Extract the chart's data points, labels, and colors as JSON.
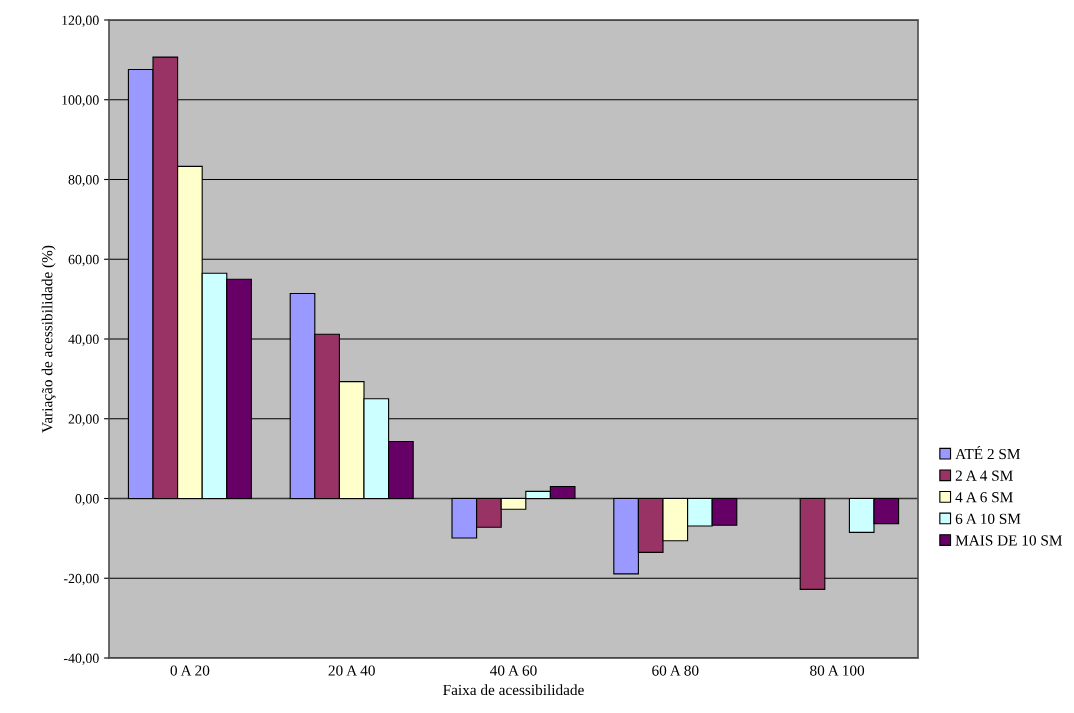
{
  "chart_data": {
    "type": "bar",
    "xlabel": "Faixa de acessibilidade",
    "ylabel": "Variação de acessibilidade (%)",
    "categories": [
      "0 A 20",
      "20 A 40",
      "40 A 60",
      "60 A 80",
      "80 A 100"
    ],
    "series": [
      {
        "name": "ATÉ 2 SM",
        "color": "#9999ff",
        "values": [
          107.6,
          51.4,
          -9.9,
          -18.9,
          null
        ]
      },
      {
        "name": "2 A 4 SM",
        "color": "#993366",
        "values": [
          110.7,
          41.2,
          -7.2,
          -13.5,
          -22.8
        ]
      },
      {
        "name": "4 A 6 SM",
        "color": "#ffffcc",
        "values": [
          83.3,
          29.3,
          -2.7,
          -10.6,
          null
        ]
      },
      {
        "name": "6 A 10 SM",
        "color": "#ccffff",
        "values": [
          56.5,
          25.0,
          1.8,
          -6.9,
          -8.5
        ]
      },
      {
        "name": "MAIS DE 10 SM",
        "color": "#660066",
        "values": [
          55.0,
          14.3,
          3.0,
          -6.7,
          -6.3
        ]
      }
    ],
    "ylim": [
      -40,
      120
    ],
    "yticks": [
      {
        "value": -40,
        "label": "-40,00"
      },
      {
        "value": -20,
        "label": "-20,00"
      },
      {
        "value": 0,
        "label": "0,00"
      },
      {
        "value": 20,
        "label": "20,00"
      },
      {
        "value": 40,
        "label": "40,00"
      },
      {
        "value": 60,
        "label": "60,00"
      },
      {
        "value": 80,
        "label": "80,00"
      },
      {
        "value": 100,
        "label": "100,00"
      },
      {
        "value": 120,
        "label": "120,00"
      }
    ],
    "grid": "y",
    "legend": "right"
  }
}
